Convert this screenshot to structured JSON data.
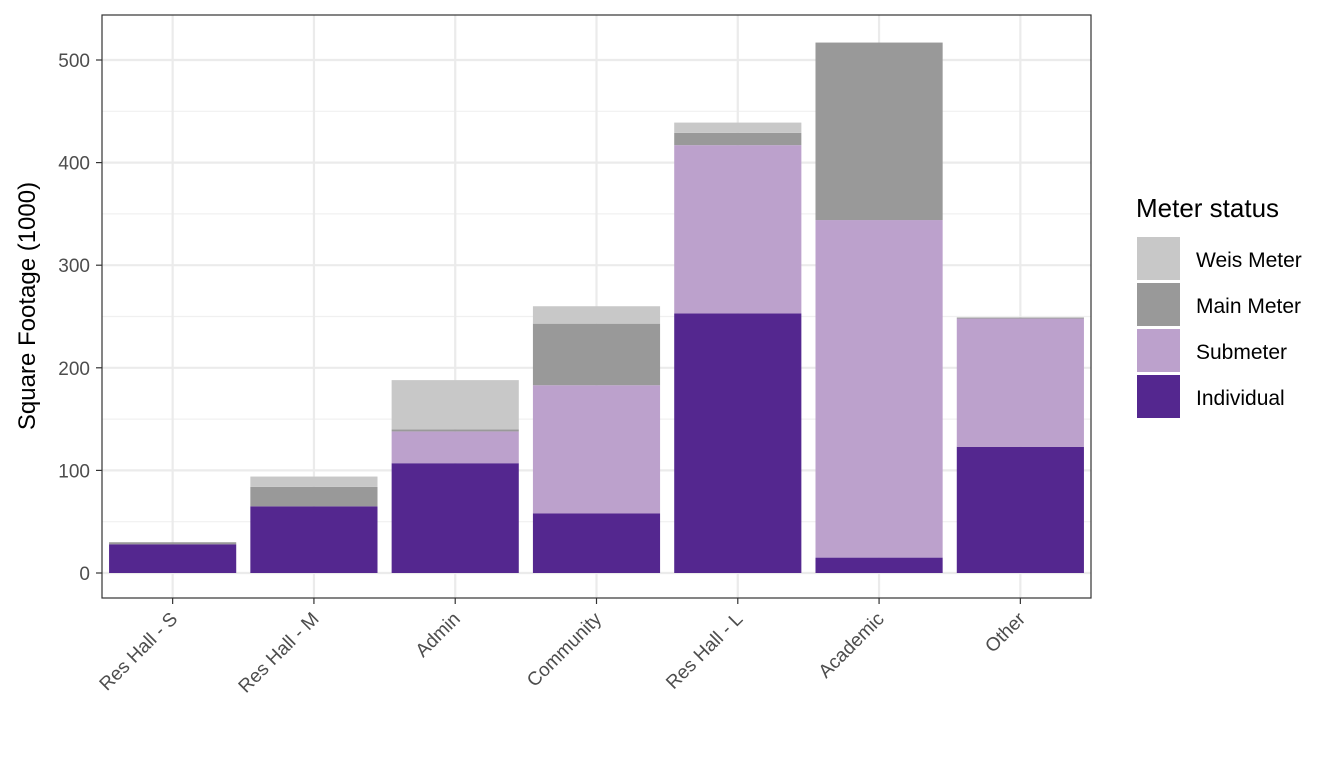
{
  "chart_data": {
    "type": "bar",
    "stacked": true,
    "title": "",
    "xlabel": "",
    "ylabel": "Square Footage (1000)",
    "ylim": [
      0,
      500
    ],
    "yticks": [
      0,
      100,
      200,
      300,
      400,
      500
    ],
    "grid": true,
    "legend_title": "Meter status",
    "legend_position": "right",
    "categories": [
      "Res Hall - S",
      "Res Hall - M",
      "Admin",
      "Community",
      "Res Hall - L",
      "Academic",
      "Other"
    ],
    "series": [
      {
        "name": "Individual",
        "color": "#54278f",
        "values": [
          28,
          65,
          107,
          58,
          253,
          15,
          123
        ]
      },
      {
        "name": "Submeter",
        "color": "#bca1cc",
        "values": [
          0,
          0,
          31,
          125,
          164,
          329,
          125
        ]
      },
      {
        "name": "Main Meter",
        "color": "#999999",
        "values": [
          2,
          19,
          2,
          60,
          12,
          173,
          1
        ]
      },
      {
        "name": "Weis Meter",
        "color": "#c8c8c8",
        "values": [
          0,
          10,
          48,
          17,
          10,
          0,
          0
        ]
      }
    ],
    "legend_order": [
      "Weis Meter",
      "Main Meter",
      "Submeter",
      "Individual"
    ]
  }
}
